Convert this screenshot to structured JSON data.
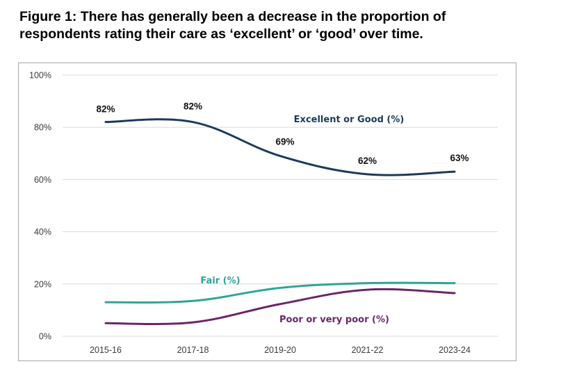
{
  "title": {
    "line1": "Figure 1: There has generally been a decrease in the proportion of",
    "line2": "respondents rating their care as ‘excellent’ or ‘good’ over time."
  },
  "chart_data": {
    "type": "line",
    "categories": [
      "2015-16",
      "2017-18",
      "2019-20",
      "2021-22",
      "2023-24"
    ],
    "ylim": [
      0,
      100
    ],
    "y_ticks": [
      "0%",
      "20%",
      "40%",
      "60%",
      "80%",
      "100%"
    ],
    "grid": true,
    "legend": "inline labels",
    "series": [
      {
        "name": "Excellent or Good (%)",
        "color": "#1b3a5c",
        "values": [
          82,
          82,
          69,
          62,
          63
        ],
        "data_labels": [
          "82%",
          "82%",
          "69%",
          "62%",
          "63%"
        ]
      },
      {
        "name": "Fair (%)",
        "color": "#2ea597",
        "values": [
          13,
          13.5,
          18.5,
          20.3,
          20.3
        ]
      },
      {
        "name": "Poor or very poor (%)",
        "color": "#6a2569",
        "values": [
          5,
          5.3,
          12.3,
          17.8,
          16.5
        ]
      }
    ]
  }
}
